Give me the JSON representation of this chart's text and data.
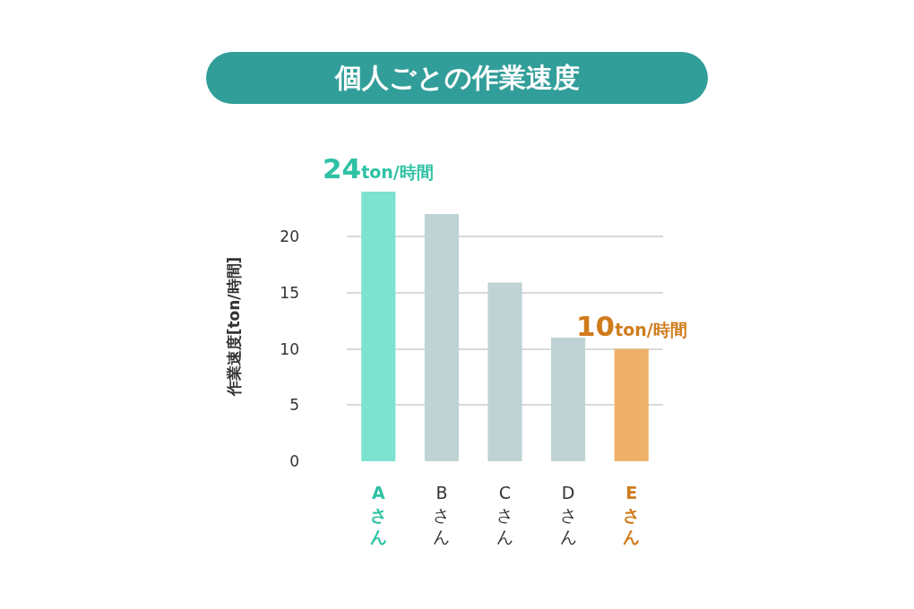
{
  "chart_data": {
    "type": "bar",
    "title": "個人ごとの作業速度",
    "ylabel": "作業速度[ton/時間]",
    "categories": [
      "Aさん",
      "Bさん",
      "Cさん",
      "Dさん",
      "Eさん"
    ],
    "values": [
      24,
      22,
      15.9,
      11,
      10
    ],
    "colors": [
      "#7be3cf",
      "#bfd3d4",
      "#bfd3d4",
      "#bfd3d4",
      "#efb16a"
    ],
    "value_labels": [
      "24ton/時間",
      null,
      null,
      null,
      "10ton/時間"
    ],
    "ylim": [
      0,
      24
    ],
    "yticks": [
      0,
      5,
      10,
      15,
      20
    ],
    "grid": "y"
  }
}
